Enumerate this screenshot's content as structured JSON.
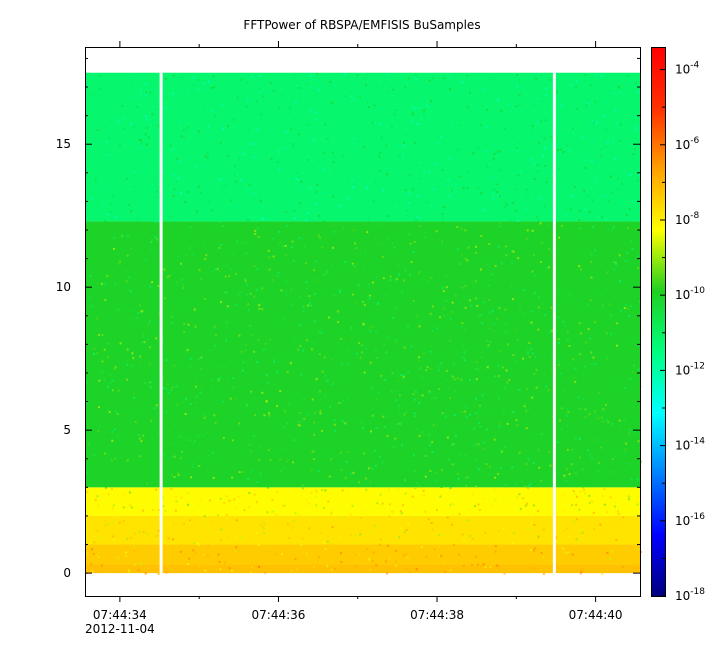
{
  "chart_data": {
    "type": "heatmap",
    "title": "FFTPower of RBSPA/EMFISIS  BuSamples",
    "xlabel": "",
    "ylabel": "",
    "x_ticks": [
      {
        "label": "07:44:34",
        "sublabel": "2012-11-04",
        "t": 34
      },
      {
        "label": "07:44:36",
        "sublabel": "",
        "t": 36
      },
      {
        "label": "07:44:38",
        "sublabel": "",
        "t": 38
      },
      {
        "label": "07:44:40",
        "sublabel": "",
        "t": 40
      }
    ],
    "x_range_seconds": [
      33.56,
      40.56
    ],
    "y_ticks": [
      0,
      5,
      10,
      15
    ],
    "ylim": [
      -0.8,
      18.4
    ],
    "data_y_range": [
      0.0,
      17.5
    ],
    "gaps_seconds": [
      34.52,
      39.48
    ],
    "bands": [
      {
        "y_from": 0.0,
        "y_to": 0.3,
        "log10_power": -7.2
      },
      {
        "y_from": 0.3,
        "y_to": 1.0,
        "log10_power": -7.4
      },
      {
        "y_from": 1.0,
        "y_to": 2.0,
        "log10_power": -7.8
      },
      {
        "y_from": 2.0,
        "y_to": 3.0,
        "log10_power": -8.2
      },
      {
        "y_from": 3.0,
        "y_to": 12.3,
        "log10_power": -10.0
      },
      {
        "y_from": 12.3,
        "y_to": 17.5,
        "log10_power": -11.2
      }
    ],
    "colorbar": {
      "scale": "log",
      "range_exponents": [
        -18,
        -3.4
      ],
      "ticks": [
        {
          "base": "10",
          "exp": "-4",
          "value": -4
        },
        {
          "base": "10",
          "exp": "-6",
          "value": -6
        },
        {
          "base": "10",
          "exp": "-8",
          "value": -8
        },
        {
          "base": "10",
          "exp": "-10",
          "value": -10
        },
        {
          "base": "10",
          "exp": "-12",
          "value": -12
        },
        {
          "base": "10",
          "exp": "-14",
          "value": -14
        },
        {
          "base": "10",
          "exp": "-16",
          "value": -16
        },
        {
          "base": "10",
          "exp": "-18",
          "value": -18
        }
      ],
      "colors": [
        "#00007f",
        "#0000ff",
        "#0080ff",
        "#00ffff",
        "#00ff80",
        "#20d020",
        "#ffff00",
        "#ffa000",
        "#ff3000",
        "#ff0000"
      ]
    }
  }
}
